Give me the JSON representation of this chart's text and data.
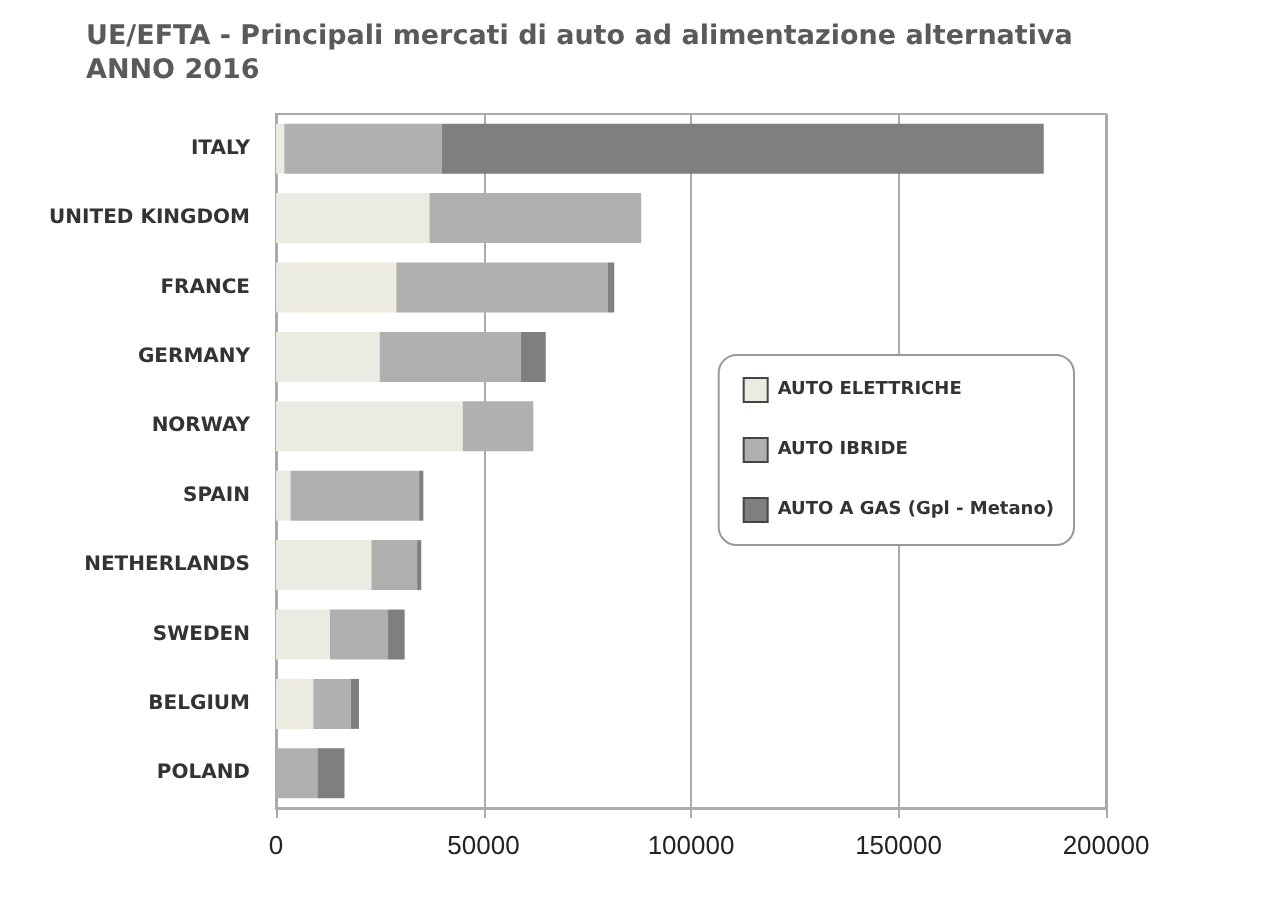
{
  "chart_data": {
    "type": "bar",
    "orientation": "horizontal",
    "stacked": true,
    "title": "UE/EFTA - Principali mercati di auto ad alimentazione alternativa",
    "subtitle": "ANNO 2016",
    "categories": [
      "ITALY",
      "UNITED KINGDOM",
      "FRANCE",
      "GERMANY",
      "NORWAY",
      "SPAIN",
      "NETHERLANDS",
      "SWEDEN",
      "BELGIUM",
      "POLAND"
    ],
    "series": [
      {
        "name": "AUTO ELETTRICHE",
        "color": "#ecebe2",
        "values": [
          2000,
          37000,
          29000,
          25000,
          45000,
          3500,
          23000,
          13000,
          9000,
          0
        ]
      },
      {
        "name": "AUTO IBRIDE",
        "color": "#b0b0b0",
        "values": [
          38000,
          51000,
          51000,
          34000,
          17000,
          31000,
          11000,
          14000,
          9000,
          10000
        ]
      },
      {
        "name": "AUTO A GAS (Gpl - Metano)",
        "color": "#7f7f7f",
        "values": [
          145000,
          0,
          1500,
          6000,
          0,
          1000,
          1000,
          4000,
          2000,
          6500
        ]
      }
    ],
    "xlim": [
      0,
      200000
    ],
    "xticks": [
      0,
      50000,
      100000,
      150000,
      200000
    ],
    "grid": "x",
    "legend": "right"
  }
}
